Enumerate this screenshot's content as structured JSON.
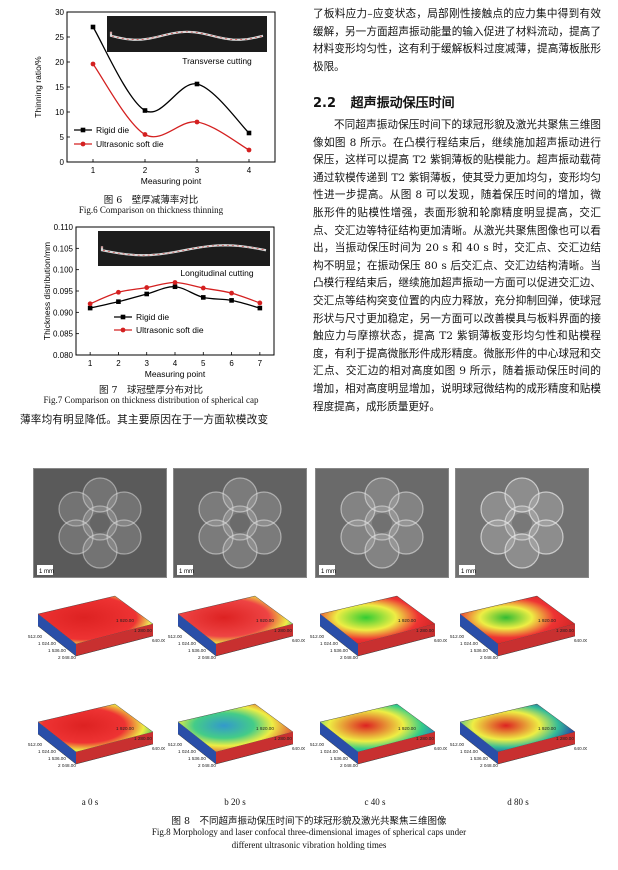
{
  "fig6": {
    "inset_label": "Transverse cutting",
    "caption_cn": "图 6　壁厚减薄率对比",
    "caption_en": "Fig.6 Comparison on thickness thinning"
  },
  "fig7": {
    "inset_label": "Longitudinal cutting",
    "caption_cn": "图 7　球冠壁厚分布对比",
    "caption_en": "Fig.7 Comparison on thickness distribution of spherical cap"
  },
  "chart_data": [
    {
      "type": "line",
      "xlabel": "Measuring point",
      "ylabel": "Thinning ratio/%",
      "x": [
        1,
        2,
        3,
        4
      ],
      "xlim": [
        0.5,
        4.5
      ],
      "ylim": [
        0,
        30
      ],
      "yticks": [
        0,
        5,
        10,
        15,
        20,
        25,
        30
      ],
      "legend_position": "bottom-left",
      "series": [
        {
          "name": "Rigid die",
          "color": "#000000",
          "values": [
            27,
            10.3,
            15.6,
            5.8
          ]
        },
        {
          "name": "Ultrasonic soft die",
          "color": "#d42020",
          "values": [
            19.6,
            5.5,
            8.0,
            2.4
          ]
        }
      ]
    },
    {
      "type": "line",
      "xlabel": "Measuring point",
      "ylabel": "Thickness distribution/mm",
      "x": [
        1,
        2,
        3,
        4,
        5,
        6,
        7
      ],
      "xlim": [
        0.5,
        7.5
      ],
      "ylim": [
        0.08,
        0.11
      ],
      "yticks": [
        "0.080",
        "0.085",
        "0.090",
        "0.095",
        "0.100",
        "0.105",
        "0.110"
      ],
      "legend_position": "bottom-center",
      "series": [
        {
          "name": "Rigid die",
          "color": "#000000",
          "values": [
            0.091,
            0.0925,
            0.0943,
            0.096,
            0.0935,
            0.0928,
            0.091
          ]
        },
        {
          "name": "Ultrasonic soft die",
          "color": "#d42020",
          "values": [
            0.092,
            0.0947,
            0.0958,
            0.097,
            0.0957,
            0.0945,
            0.0922
          ]
        }
      ]
    }
  ],
  "left_text": "薄率均有明显降低。其主要原因在于一方面软模改变",
  "right_top_text": "了板料应力–应变状态，局部刚性接触点的应力集中得到有效缓解，另一方面超声振动能量的输入促进了材料流动，提高了材料变形均匀性，这有利于缓解板料过度减薄，提高薄板胀形极限。",
  "section": {
    "number": "2.2",
    "title": "超声振动保压时间"
  },
  "right_body_text": "不同超声振动保压时间下的球冠形貌及激光共聚焦三维图像如图 8 所示。在凸模行程结束后，继续施加超声振动进行保压，这样可以提高 T2 紫铜薄板的贴模能力。超声振动载荷通过软模传递到 T2 紫铜薄板，使其受力更加均匀，变形均匀性进一步提高。从图 8 可以发现，随着保压时间的增加，微胀形件的贴模性增强，表面形貌和轮廓精度明显提高，交汇点、交汇边等特征结构更加清晰。从激光共聚焦图像也可以看出，当振动保压时间为 20 s 和 40 s 时，交汇点、交汇边结构不明显；在振动保压 80 s 后交汇点、交汇边结构清晰。当凸模行程结束后，继续施加超声振动一方面可以促进交汇边、交汇点等结构突变位置的内应力释放，充分抑制回弹，使球冠形状与尺寸更加稳定，另一方面可以改善模具与板料界面的接触应力与摩擦状态，提高 T2 紫铜薄板变形均匀性和贴模程度，有利于提高微胀形件成形精度。微胀形件的中心球冠和交汇点、交汇边的相对高度如图 9 所示，随着振动保压时间的增加，相对高度明显增加，说明球冠微结构的成形精度和贴模程度提高，成形质量更好。",
  "fig8": {
    "scale_label": "1 mm",
    "axis_x_ticks": [
      "512.00",
      "1 024.00",
      "1 536.00",
      "2 048.00"
    ],
    "axis_y_ticks": [
      "640.00",
      "1 280.00",
      "1 920.00"
    ],
    "labels": [
      "a  0 s",
      "b  20 s",
      "c  40 s",
      "d  80 s"
    ],
    "caption_cn": "图 8　不同超声振动保压时间下的球冠形貌及激光共聚焦三维图像",
    "caption_en_1": "Fig.8 Morphology and laser confocal three-dimensional images of spherical caps under",
    "caption_en_2": "different ultrasonic vibration holding times"
  }
}
